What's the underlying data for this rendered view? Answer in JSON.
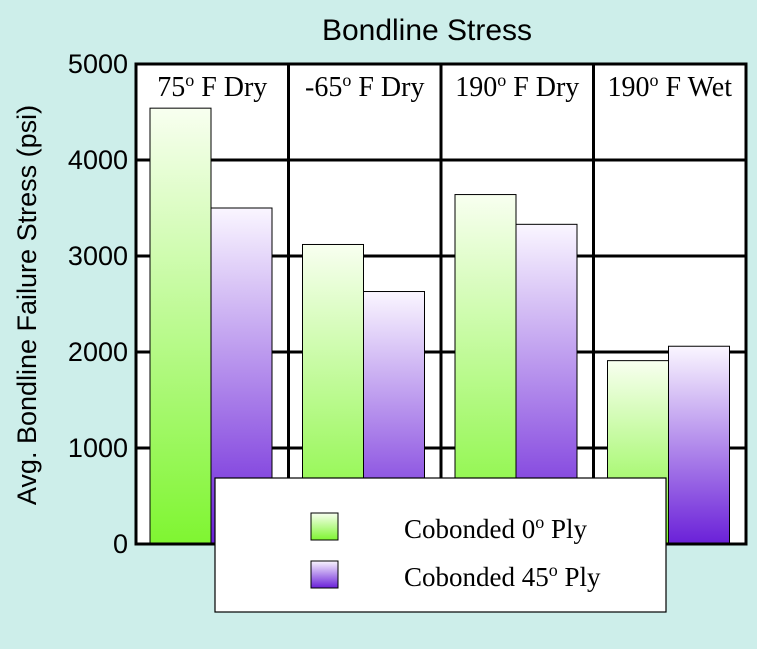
{
  "chart_data": {
    "type": "bar",
    "title": "Bondline Stress",
    "xlabel": "",
    "ylabel": "Avg. Bondline Failure Stress (psi)",
    "ylim": [
      0,
      5000
    ],
    "yticks": [
      0,
      1000,
      2000,
      3000,
      4000,
      5000
    ],
    "grid": true,
    "legend_position": "bottom-center",
    "categories": [
      {
        "main": "75",
        "sup": "o",
        "rest": " F Dry"
      },
      {
        "main": "-65",
        "sup": "o",
        "rest": " F Dry"
      },
      {
        "main": "190",
        "sup": "o",
        "rest": " F Dry"
      },
      {
        "main": "190",
        "sup": "o",
        "rest": " F Wet"
      }
    ],
    "series": [
      {
        "name": {
          "main": "Cobonded 0",
          "sup": "o",
          "rest": "  Ply"
        },
        "values": [
          4540,
          3120,
          3640,
          1910
        ],
        "color_top": "#f8fff0",
        "color_bottom": "#7ff531"
      },
      {
        "name": {
          "main": "Cobonded 45",
          "sup": "o",
          "rest": "  Ply"
        },
        "values": [
          3500,
          2630,
          3330,
          2060
        ],
        "color_top": "#faf6ff",
        "color_bottom": "#6a20d8"
      }
    ]
  }
}
